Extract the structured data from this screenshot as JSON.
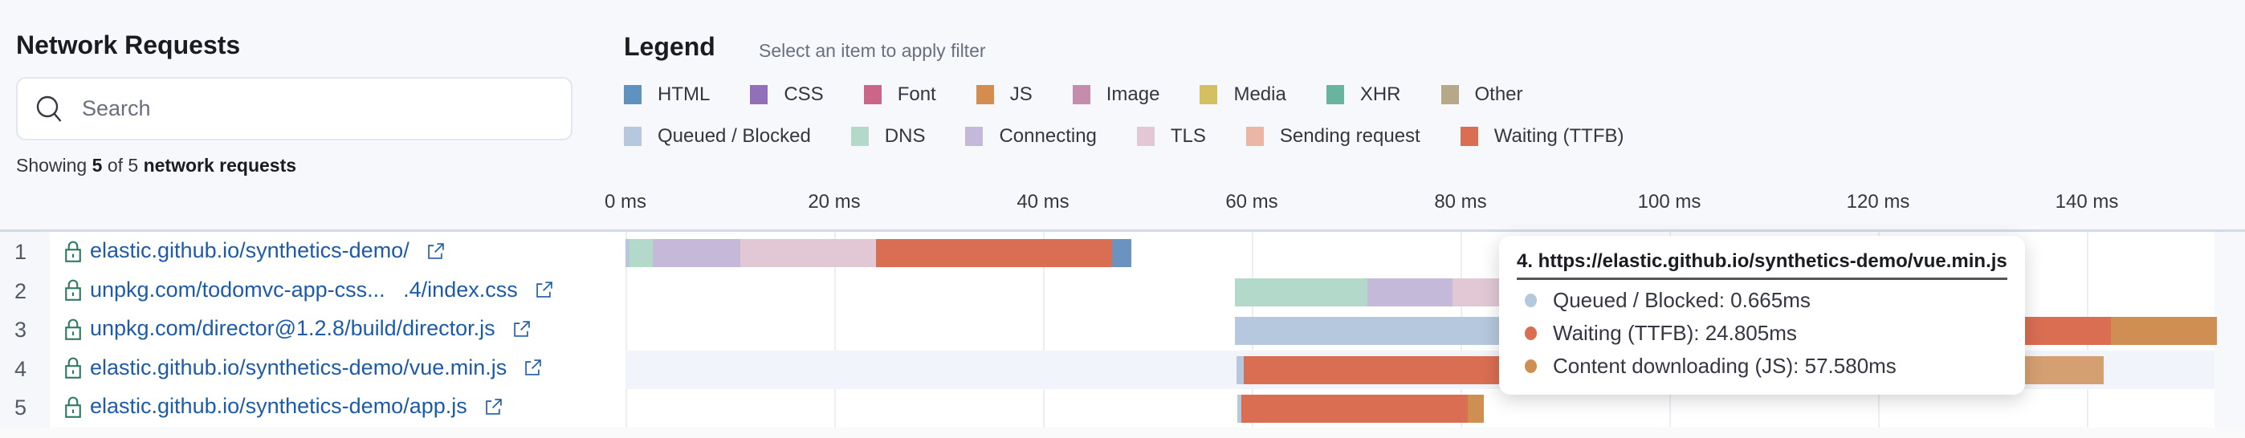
{
  "panel": {
    "title": "Network Requests",
    "search_placeholder": "Search",
    "showing_prefix": "Showing",
    "showing_count": "5",
    "showing_of": "of 5",
    "showing_suffix": "network requests"
  },
  "legend": {
    "title": "Legend",
    "subtitle": "Select an item to apply filter",
    "mime_types": [
      {
        "label": "HTML",
        "color": "#6092c0"
      },
      {
        "label": "CSS",
        "color": "#9170b8"
      },
      {
        "label": "Font",
        "color": "#ca6688"
      },
      {
        "label": "JS",
        "color": "#d58d4f"
      },
      {
        "label": "Image",
        "color": "#c48dab"
      },
      {
        "label": "Media",
        "color": "#d5c061"
      },
      {
        "label": "XHR",
        "color": "#6ab39c"
      },
      {
        "label": "Other",
        "color": "#b6a98a"
      }
    ],
    "timings": [
      {
        "label": "Queued / Blocked",
        "color": "#b6c8de"
      },
      {
        "label": "DNS",
        "color": "#b3d9cb"
      },
      {
        "label": "Connecting",
        "color": "#c5b9d9"
      },
      {
        "label": "TLS",
        "color": "#e2c8d5"
      },
      {
        "label": "Sending request",
        "color": "#ecb6a7"
      },
      {
        "label": "Waiting (TTFB)",
        "color": "#d96e53"
      }
    ]
  },
  "axis": {
    "unit": "ms",
    "ticks": [
      {
        "value": 0,
        "label": "0 ms"
      },
      {
        "value": 20,
        "label": "20 ms"
      },
      {
        "value": 40,
        "label": "40 ms"
      },
      {
        "value": 60,
        "label": "60 ms"
      },
      {
        "value": 80,
        "label": "80 ms"
      },
      {
        "value": 100,
        "label": "100 ms"
      },
      {
        "value": 120,
        "label": "120 ms"
      },
      {
        "value": 140,
        "label": "140 ms"
      }
    ]
  },
  "requests": [
    {
      "num": "1",
      "url": "elastic.github.io/synthetics-demo/",
      "segments": [
        {
          "type": "queued",
          "start": 0,
          "end": 0.4,
          "color": "#b6c8de"
        },
        {
          "type": "dns",
          "start": 0.4,
          "end": 2.6,
          "color": "#b3d9cb"
        },
        {
          "type": "connecting",
          "start": 2.6,
          "end": 11.0,
          "color": "#c5b9d9"
        },
        {
          "type": "tls",
          "start": 11.0,
          "end": 24.0,
          "color": "#e2c8d5"
        },
        {
          "type": "waiting",
          "start": 24.0,
          "end": 46.6,
          "color": "#d96e53"
        },
        {
          "type": "html",
          "start": 46.6,
          "end": 48.5,
          "color": "#6b93bf"
        }
      ]
    },
    {
      "num": "2",
      "url": "unpkg.com/todomvc-app-css...   .4/index.css",
      "segments": [
        {
          "type": "dns",
          "start": 58.4,
          "end": 71.1,
          "color": "#b3d9cb"
        },
        {
          "type": "connecting",
          "start": 71.1,
          "end": 79.2,
          "color": "#c5b9d9"
        },
        {
          "type": "tls",
          "start": 79.2,
          "end": 92.0,
          "color": "#e2c8d5"
        }
      ]
    },
    {
      "num": "3",
      "url": "unpkg.com/director@1.2.8/build/director.js",
      "segments": [
        {
          "type": "queued",
          "start": 58.4,
          "end": 99.0,
          "color": "#b6c8de"
        },
        {
          "type": "waiting",
          "start": 99.0,
          "end": 142.3,
          "color": "#d96e53"
        },
        {
          "type": "js",
          "start": 142.3,
          "end": 152.5,
          "color": "#d08f52"
        }
      ]
    },
    {
      "num": "4",
      "url": "elastic.github.io/synthetics-demo/vue.min.js",
      "highlighted": true,
      "segments": [
        {
          "type": "queued",
          "start": 58.5,
          "end": 59.2,
          "color": "#b6c8de"
        },
        {
          "type": "waiting",
          "start": 59.2,
          "end": 84.1,
          "color": "#d96e53"
        },
        {
          "type": "js",
          "start": 84.1,
          "end": 141.6,
          "color": "#d4a071"
        }
      ]
    },
    {
      "num": "5",
      "url": "elastic.github.io/synthetics-demo/app.js",
      "segments": [
        {
          "type": "queued",
          "start": 58.6,
          "end": 59.0,
          "color": "#b6c8de"
        },
        {
          "type": "waiting",
          "start": 59.0,
          "end": 80.7,
          "color": "#d96e53"
        },
        {
          "type": "js",
          "start": 80.7,
          "end": 82.2,
          "color": "#d08f52"
        }
      ]
    }
  ],
  "tooltip": {
    "title": "4. https://elastic.github.io/synthetics-demo/vue.min.js",
    "lines": [
      {
        "text": "Queued / Blocked: 0.665ms",
        "color": "#b6c8de"
      },
      {
        "text": "Waiting (TTFB): 24.805ms",
        "color": "#d96e53"
      },
      {
        "text": "Content downloading (JS): 57.580ms",
        "color": "#d08f52"
      }
    ]
  }
}
